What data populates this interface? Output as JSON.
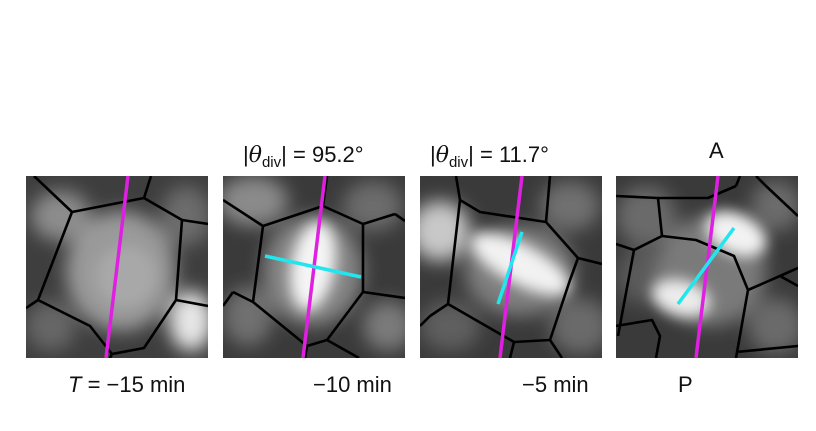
{
  "panels": [
    {
      "time_label": "T = −15 min",
      "time_var": "T",
      "time_rest": " = −15 min"
    },
    {
      "time_label": "−10 min",
      "angle_label": "|θdiv| = 95.2°",
      "angle_value": "95.2°"
    },
    {
      "time_label": "−5 min",
      "angle_label": "|θdiv| = 11.7°",
      "angle_value": "11.7°"
    },
    {
      "time_label": "P",
      "top_label": "A"
    }
  ],
  "angle_prefix": "|",
  "angle_symbol": "θ",
  "angle_subscript": "div",
  "angle_infix": "| = ",
  "colors": {
    "axis_line": "#e020e0",
    "division_line": "#22e6ee",
    "cell_edges": "#000000",
    "background": "#ffffff"
  }
}
